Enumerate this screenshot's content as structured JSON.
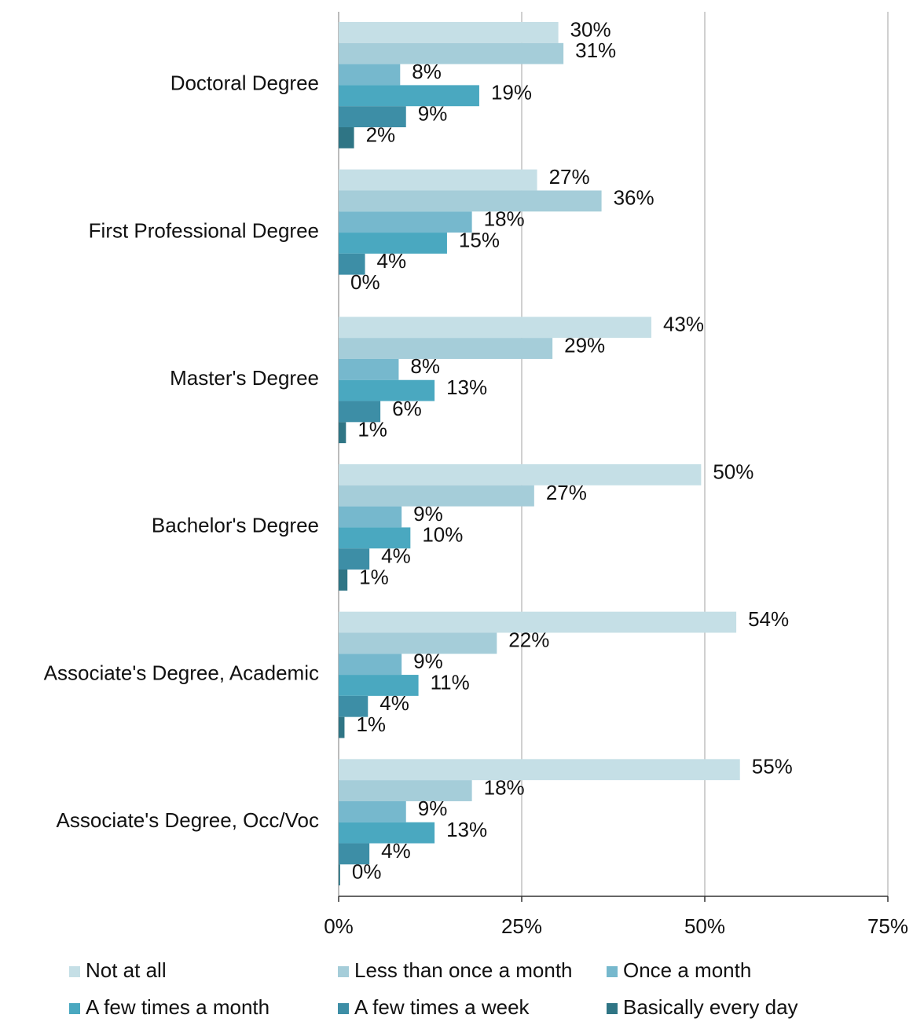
{
  "chart_data": {
    "type": "bar",
    "orientation": "horizontal",
    "categories": [
      "Doctoral Degree",
      "First Professional Degree",
      "Master's Degree",
      "Bachelor's Degree",
      "Associate's Degree, Academic",
      "Associate's Degree, Occ/Voc"
    ],
    "series": [
      {
        "name": "Not at all",
        "color": "#c5dfe6",
        "values": [
          30.0,
          27.1,
          42.7,
          49.5,
          54.3,
          54.8
        ],
        "value_labels": [
          "30%",
          "27%",
          "43%",
          "50%",
          "54%",
          "55%"
        ]
      },
      {
        "name": "Less than once a month",
        "color": "#a5cdd9",
        "values": [
          30.7,
          35.9,
          29.2,
          26.7,
          21.6,
          18.2
        ],
        "value_labels": [
          "31%",
          "36%",
          "29%",
          "27%",
          "22%",
          "18%"
        ]
      },
      {
        "name": "Once a month",
        "color": "#76b8cd",
        "values": [
          8.4,
          18.2,
          8.2,
          8.6,
          8.6,
          9.2
        ],
        "value_labels": [
          "8%",
          "18%",
          "8%",
          "9%",
          "9%",
          "9%"
        ]
      },
      {
        "name": "A few times a month",
        "color": "#4aa8c0",
        "values": [
          19.2,
          14.8,
          13.1,
          9.8,
          10.9,
          13.1
        ],
        "value_labels": [
          "19%",
          "15%",
          "13%",
          "10%",
          "11%",
          "13%"
        ]
      },
      {
        "name": "A few times a week",
        "color": "#3d8ea6",
        "values": [
          9.2,
          3.6,
          5.7,
          4.2,
          4.0,
          4.2
        ],
        "value_labels": [
          "9%",
          "4%",
          "6%",
          "4%",
          "4%",
          "4%"
        ]
      },
      {
        "name": "Basically every day",
        "color": "#2f7585",
        "values": [
          2.1,
          0,
          1.0,
          1.2,
          0.8,
          0.2
        ],
        "value_labels": [
          "2%",
          "0%",
          "1%",
          "1%",
          "1%",
          "0%"
        ]
      }
    ],
    "xlim": [
      0,
      75
    ],
    "xticks": [
      {
        "value": 0,
        "label": "0%"
      },
      {
        "value": 25,
        "label": "25%"
      },
      {
        "value": 50,
        "label": "50%"
      },
      {
        "value": 75,
        "label": "75%"
      }
    ],
    "grid": true,
    "legend": "bottom"
  }
}
